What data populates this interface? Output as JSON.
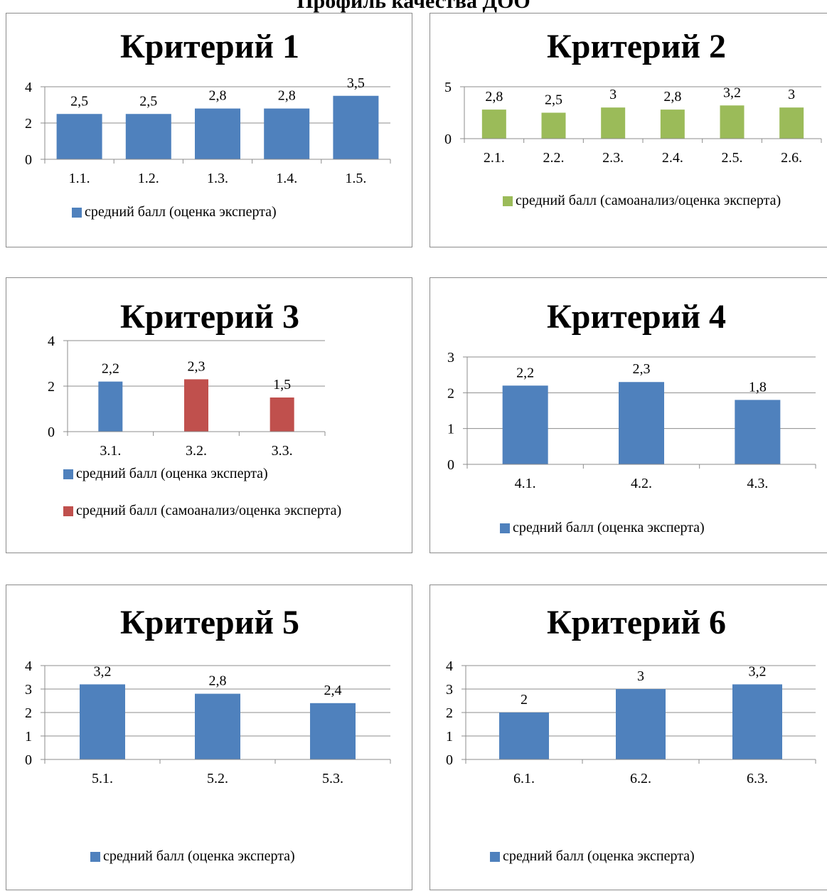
{
  "page": {
    "title": "Профиль качества ДОО"
  },
  "colors": {
    "blue": "#4f81bd",
    "green": "#9bbb59",
    "red": "#c0504d"
  },
  "chart_data": [
    {
      "type": "bar",
      "title": "Критерий 1",
      "categories": [
        "1.1.",
        "1.2.",
        "1.3.",
        "1.4.",
        "1.5."
      ],
      "data_labels": [
        "2,5",
        "2,5",
        "2,8",
        "2,8",
        "3,5"
      ],
      "ylim": [
        0,
        4
      ],
      "yticks": [
        "0",
        "2",
        "4"
      ],
      "grid": true,
      "legend_position": "bottom",
      "series": [
        {
          "name": "средний балл (оценка эксперта)",
          "color": "#4f81bd",
          "values": [
            2.5,
            2.5,
            2.8,
            2.8,
            3.5
          ]
        }
      ]
    },
    {
      "type": "bar",
      "title": "Критерий 2",
      "categories": [
        "2.1.",
        "2.2.",
        "2.3.",
        "2.4.",
        "2.5.",
        "2.6."
      ],
      "data_labels": [
        "2,8",
        "2,5",
        "3",
        "2,8",
        "3,2",
        "3"
      ],
      "ylim": [
        0,
        5
      ],
      "yticks": [
        "0",
        "5"
      ],
      "grid": true,
      "legend_position": "bottom",
      "series": [
        {
          "name": "средний балл (самоанализ/оценка эксперта)",
          "color": "#9bbb59",
          "values": [
            2.8,
            2.5,
            3,
            2.8,
            3.2,
            3
          ]
        }
      ]
    },
    {
      "type": "bar",
      "title": "Критерий 3",
      "categories": [
        "3.1.",
        "3.2.",
        "3.3."
      ],
      "data_labels": [
        "2,2",
        "2,3",
        "1,5"
      ],
      "ylim": [
        0,
        4
      ],
      "yticks": [
        "0",
        "2",
        "4"
      ],
      "grid": true,
      "legend_position": "bottom",
      "series": [
        {
          "name": "средний балл (оценка эксперта)",
          "color": "#4f81bd",
          "values": [
            2.2,
            null,
            null
          ]
        },
        {
          "name": "средний балл (самоанализ/оценка эксперта)",
          "color": "#c0504d",
          "values": [
            null,
            2.3,
            1.5
          ]
        }
      ]
    },
    {
      "type": "bar",
      "title": "Критерий 4",
      "categories": [
        "4.1.",
        "4.2.",
        "4.3."
      ],
      "data_labels": [
        "2,2",
        "2,3",
        "1,8"
      ],
      "ylim": [
        0,
        3
      ],
      "yticks": [
        "0",
        "1",
        "2",
        "3"
      ],
      "grid": true,
      "legend_position": "bottom",
      "series": [
        {
          "name": "средний балл (оценка эксперта)",
          "color": "#4f81bd",
          "values": [
            2.2,
            2.3,
            1.8
          ]
        }
      ]
    },
    {
      "type": "bar",
      "title": "Критерий 5",
      "categories": [
        "5.1.",
        "5.2.",
        "5.3."
      ],
      "data_labels": [
        "3,2",
        "2,8",
        "2,4"
      ],
      "ylim": [
        0,
        4
      ],
      "yticks": [
        "0",
        "1",
        "2",
        "3",
        "4"
      ],
      "grid": true,
      "legend_position": "bottom",
      "series": [
        {
          "name": "средний балл (оценка эксперта)",
          "color": "#4f81bd",
          "values": [
            3.2,
            2.8,
            2.4
          ]
        }
      ]
    },
    {
      "type": "bar",
      "title": "Критерий 6",
      "categories": [
        "6.1.",
        "6.2.",
        "6.3."
      ],
      "data_labels": [
        "2",
        "3",
        "3,2"
      ],
      "ylim": [
        0,
        4
      ],
      "yticks": [
        "0",
        "1",
        "2",
        "3",
        "4"
      ],
      "grid": true,
      "legend_position": "bottom",
      "series": [
        {
          "name": "средний балл (оценка эксперта)",
          "color": "#4f81bd",
          "values": [
            2,
            3,
            3.2
          ]
        }
      ]
    }
  ]
}
